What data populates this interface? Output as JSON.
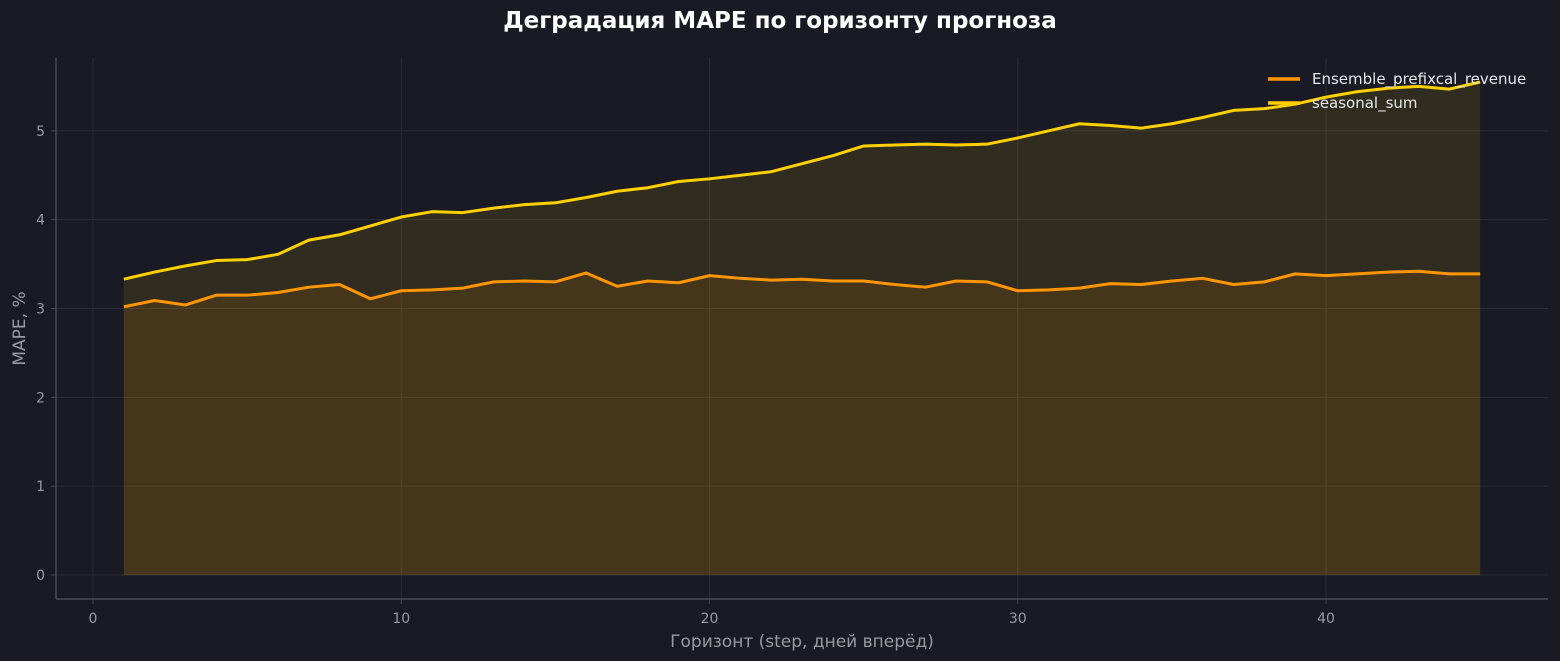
{
  "chart_data": {
    "type": "line",
    "title": "Деградация MAPE по горизонту прогноза",
    "xlabel": "Горизонт (step, дней вперёд)",
    "ylabel": "MAPE, %",
    "xlim": [
      -1.2,
      47.2
    ],
    "ylim": [
      -0.27,
      5.82
    ],
    "xticks": [
      0,
      10,
      20,
      30,
      40
    ],
    "yticks": [
      0,
      1,
      2,
      3,
      4,
      5
    ],
    "grid": true,
    "legend_position": "top-right",
    "fill_under": true,
    "x": [
      1,
      2,
      3,
      4,
      5,
      6,
      7,
      8,
      9,
      10,
      11,
      12,
      13,
      14,
      15,
      16,
      17,
      18,
      19,
      20,
      21,
      22,
      23,
      24,
      25,
      26,
      27,
      28,
      29,
      30,
      31,
      32,
      33,
      34,
      35,
      36,
      37,
      38,
      39,
      40,
      41,
      42,
      43,
      44,
      45
    ],
    "series": [
      {
        "name": "Ensemble_prefixcal_revenue",
        "color": "#ff9500",
        "values": [
          3.02,
          3.09,
          3.04,
          3.15,
          3.15,
          3.18,
          3.24,
          3.27,
          3.11,
          3.2,
          3.21,
          3.23,
          3.3,
          3.31,
          3.3,
          3.4,
          3.25,
          3.31,
          3.29,
          3.37,
          3.34,
          3.32,
          3.33,
          3.31,
          3.31,
          3.27,
          3.24,
          3.31,
          3.3,
          3.2,
          3.21,
          3.23,
          3.28,
          3.27,
          3.31,
          3.34,
          3.27,
          3.3,
          3.39,
          3.37,
          3.39,
          3.41,
          3.42,
          3.39,
          3.39
        ]
      },
      {
        "name": "seasonal_sum",
        "color": "#ffd000",
        "values": [
          3.33,
          3.41,
          3.48,
          3.54,
          3.55,
          3.61,
          3.77,
          3.83,
          3.93,
          4.03,
          4.09,
          4.08,
          4.13,
          4.17,
          4.19,
          4.25,
          4.32,
          4.36,
          4.43,
          4.46,
          4.5,
          4.54,
          4.63,
          4.72,
          4.83,
          4.84,
          4.85,
          4.84,
          4.85,
          4.92,
          5.0,
          5.08,
          5.06,
          5.03,
          5.08,
          5.15,
          5.23,
          5.25,
          5.3,
          5.38,
          5.44,
          5.48,
          5.5,
          5.47,
          5.55
        ]
      }
    ]
  },
  "colors": {
    "background": "#191a23",
    "grid": "#2c2d36",
    "axis": "#4a4b55"
  }
}
